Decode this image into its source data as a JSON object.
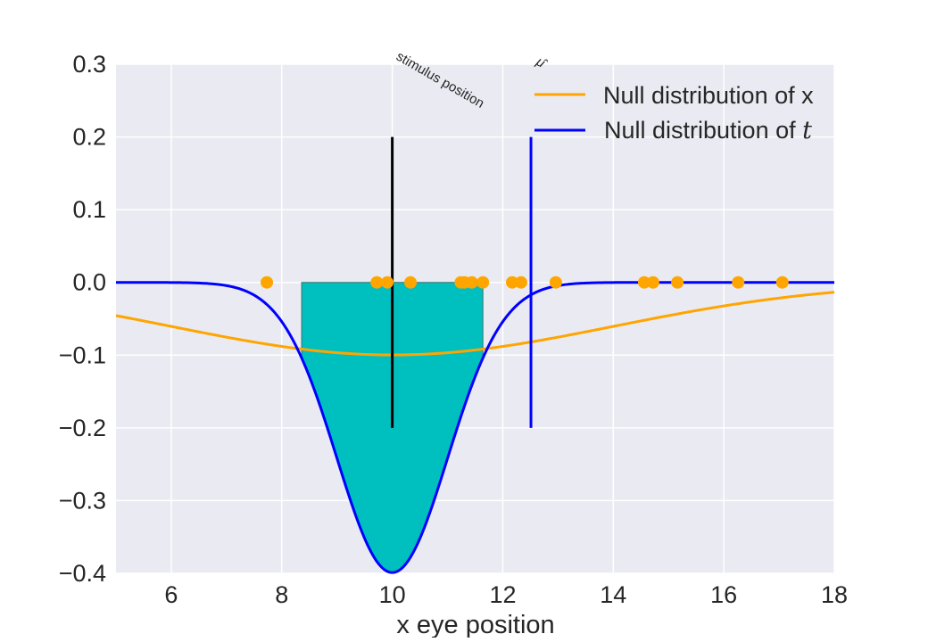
{
  "chart_data": {
    "type": "line",
    "title": "",
    "xlabel": "x eye position",
    "ylabel": "",
    "xlim": [
      5,
      18
    ],
    "ylim": [
      -0.4,
      0.3
    ],
    "xticks": [
      6,
      8,
      10,
      12,
      14,
      16,
      18
    ],
    "xtick_labels": [
      "6",
      "8",
      "10",
      "12",
      "14",
      "16",
      "18"
    ],
    "yticks": [
      0.3,
      0.2,
      0.1,
      0.0,
      -0.1,
      -0.2,
      -0.3,
      -0.4
    ],
    "ytick_labels": [
      "0.3",
      "0.2",
      "0.1",
      "0.0",
      "−0.1",
      "−0.2",
      "−0.3",
      "−0.4"
    ],
    "grid": true,
    "background": "#eaeaf2",
    "legend": {
      "position": "top-right",
      "entries": [
        {
          "label": "Null distribution of x",
          "color": "#ffa500"
        },
        {
          "label": "Null distribution of ",
          "math": "t",
          "color": "#0000ff"
        }
      ]
    },
    "series": [
      {
        "name": "Null distribution of x",
        "kind": "negative normal pdf",
        "mean": 10,
        "sd": 4,
        "color": "#ffa500"
      },
      {
        "name": "Null distribution of t",
        "kind": "negative normal pdf",
        "mean": 10,
        "sd": 1,
        "color": "#0000ff"
      }
    ],
    "shaded_region": {
      "x_range": [
        8.36,
        11.64
      ],
      "between": "0 and null distribution of t",
      "color": "#00bfbf"
    },
    "samples": {
      "y": 0,
      "x": [
        7.73,
        9.72,
        9.91,
        10.33,
        11.24,
        11.31,
        11.44,
        11.64,
        12.17,
        12.33,
        12.96,
        14.56,
        14.72,
        15.16,
        16.26,
        17.06
      ],
      "color": "#ffa500"
    },
    "vlines": [
      {
        "x": 10,
        "y_range": [
          -0.2,
          0.2
        ],
        "color": "#000000",
        "label": "stimulus position"
      },
      {
        "x": 12.51,
        "y_range": [
          -0.2,
          0.2
        ],
        "color": "#0000ff",
        "label": "μ̂"
      }
    ]
  }
}
